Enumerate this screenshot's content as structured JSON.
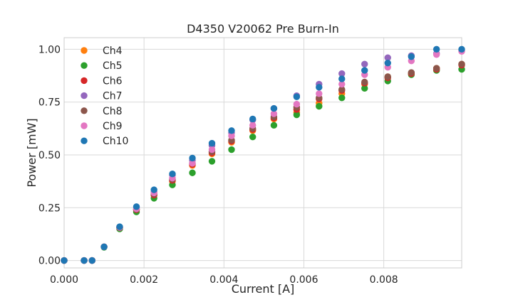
{
  "chart_data": {
    "type": "scatter",
    "title": "D4350 V20062 Pre Burn-In",
    "xlabel": "Current [A]",
    "ylabel": "Power [mW]",
    "xlim": [
      0,
      0.00995
    ],
    "ylim": [
      -0.035,
      1.055
    ],
    "grid": true,
    "legend_position": "top-left",
    "x_ticks": [
      0,
      0.002,
      0.004,
      0.006,
      0.008
    ],
    "x_tick_labels": [
      "0.000",
      "0.002",
      "0.004",
      "0.006",
      "0.008"
    ],
    "y_ticks": [
      0,
      0.25,
      0.5,
      0.75,
      1.0
    ],
    "y_tick_labels": [
      "0.00",
      "0.25",
      "0.50",
      "0.75",
      "1.00"
    ],
    "x": [
      0.0,
      0.0005,
      0.0007,
      0.001,
      0.00139,
      0.00181,
      0.00225,
      0.00271,
      0.00321,
      0.0037,
      0.00419,
      0.00472,
      0.00525,
      0.00582,
      0.00638,
      0.00695,
      0.00752,
      0.0081,
      0.00869,
      0.00932,
      0.00995
    ],
    "series": [
      {
        "name": "Ch4",
        "color": "#ff7f0e",
        "values": [
          0.0,
          0.0,
          0.0,
          0.065,
          0.155,
          0.24,
          0.31,
          0.375,
          0.45,
          0.505,
          0.56,
          0.615,
          0.67,
          0.7,
          0.745,
          0.79,
          0.835,
          0.87,
          0.885,
          0.91,
          0.93
        ]
      },
      {
        "name": "Ch5",
        "color": "#2ca02c",
        "values": [
          0.0,
          0.0,
          0.0,
          0.063,
          0.15,
          0.23,
          0.295,
          0.358,
          0.415,
          0.47,
          0.525,
          0.585,
          0.64,
          0.69,
          0.73,
          0.77,
          0.815,
          0.85,
          0.88,
          0.9,
          0.905
        ]
      },
      {
        "name": "Ch6",
        "color": "#d62728",
        "values": [
          0.0,
          0.0,
          0.0,
          0.065,
          0.155,
          0.24,
          0.31,
          0.38,
          0.455,
          0.51,
          0.565,
          0.62,
          0.675,
          0.715,
          0.765,
          0.805,
          0.84,
          0.865,
          0.885,
          0.905,
          0.925
        ]
      },
      {
        "name": "Ch7",
        "color": "#9467bd",
        "values": [
          0.0,
          0.0,
          0.0,
          0.065,
          0.158,
          0.25,
          0.325,
          0.405,
          0.475,
          0.545,
          0.605,
          0.665,
          0.72,
          0.78,
          0.835,
          0.885,
          0.93,
          0.96,
          0.97,
          0.98,
          0.995
        ]
      },
      {
        "name": "Ch8",
        "color": "#8c564b",
        "values": [
          0.0,
          0.0,
          0.0,
          0.065,
          0.155,
          0.242,
          0.315,
          0.385,
          0.46,
          0.515,
          0.57,
          0.625,
          0.68,
          0.725,
          0.77,
          0.81,
          0.845,
          0.87,
          0.89,
          0.91,
          0.93
        ]
      },
      {
        "name": "Ch9",
        "color": "#e377c2",
        "values": [
          0.0,
          0.0,
          0.0,
          0.065,
          0.157,
          0.245,
          0.32,
          0.39,
          0.46,
          0.525,
          0.59,
          0.64,
          0.695,
          0.74,
          0.79,
          0.835,
          0.88,
          0.915,
          0.945,
          0.975,
          0.99
        ]
      },
      {
        "name": "Ch10",
        "color": "#1f77b4",
        "values": [
          0.0,
          0.0,
          0.0,
          0.065,
          0.16,
          0.255,
          0.335,
          0.41,
          0.485,
          0.555,
          0.615,
          0.67,
          0.72,
          0.775,
          0.82,
          0.86,
          0.9,
          0.935,
          0.965,
          1.0,
          1.0
        ]
      }
    ]
  }
}
